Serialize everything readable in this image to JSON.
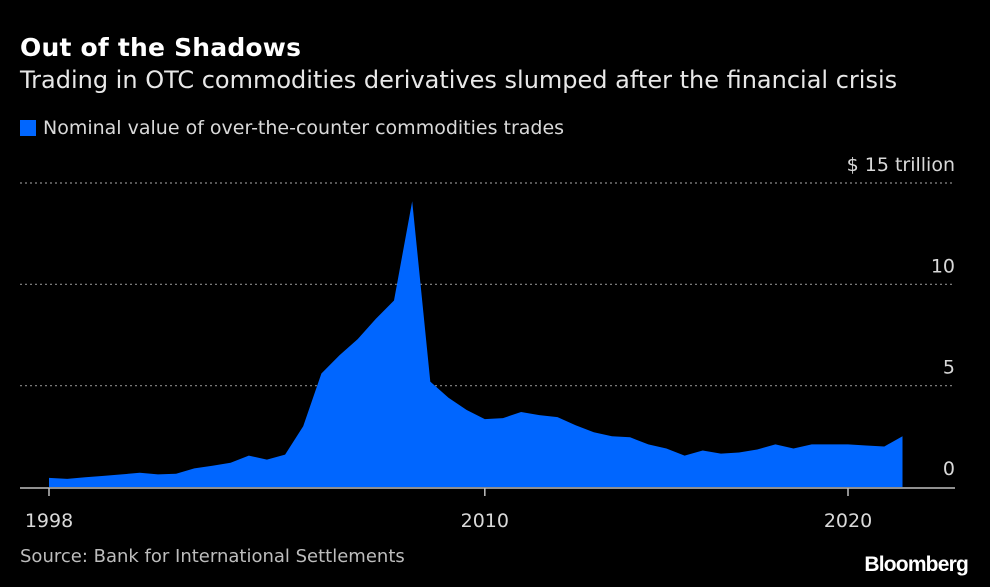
{
  "header": {
    "title": "Out of the Shadows",
    "subtitle": "Trading in OTC commodities derivatives slumped after the financial crisis"
  },
  "legend": {
    "label": "Nominal value of over-the-counter commodities trades"
  },
  "footer": {
    "source": "Source: Bank for International Settlements",
    "brand": "Bloomberg"
  },
  "colors": {
    "background": "#000000",
    "series": "#0066ff",
    "gridline": "#8a8a8a",
    "axis": "#bfbfbf",
    "tick_text": "#d9d9d9"
  },
  "chart_data": {
    "type": "area",
    "title": "Out of the Shadows",
    "subtitle": "Trading in OTC commodities derivatives slumped after the financial crisis",
    "xlabel": "",
    "ylabel": "",
    "xlim": [
      1998,
      2023.0
    ],
    "ylim": [
      0,
      15
    ],
    "y_unit_label": "$ 15 trillion",
    "y_ticks": [
      {
        "value": 15,
        "label": "$ 15 trillion"
      },
      {
        "value": 10,
        "label": "10"
      },
      {
        "value": 5,
        "label": "5"
      },
      {
        "value": 0,
        "label": "0"
      }
    ],
    "x_ticks": [
      {
        "value": 1998,
        "label": "1998"
      },
      {
        "value": 2010,
        "label": "2010"
      },
      {
        "value": 2020,
        "label": "2020"
      }
    ],
    "grid": true,
    "legend_position": "top-left",
    "series": [
      {
        "name": "Nominal value of over-the-counter commodities trades",
        "x": [
          1998.0,
          1998.5,
          1999.0,
          1999.5,
          2000.0,
          2000.5,
          2001.0,
          2001.5,
          2002.0,
          2002.5,
          2003.0,
          2003.5,
          2004.0,
          2004.5,
          2005.0,
          2005.5,
          2006.0,
          2006.5,
          2007.0,
          2007.5,
          2008.0,
          2008.5,
          2009.0,
          2009.5,
          2010.0,
          2010.5,
          2011.0,
          2011.5,
          2012.0,
          2012.5,
          2013.0,
          2013.5,
          2014.0,
          2014.5,
          2015.0,
          2015.5,
          2016.0,
          2016.5,
          2017.0,
          2017.5,
          2018.0,
          2018.5,
          2019.0,
          2019.5,
          2020.0,
          2020.5,
          2021.0,
          2021.5
        ],
        "values": [
          0.45,
          0.4,
          0.48,
          0.55,
          0.62,
          0.7,
          0.62,
          0.65,
          0.92,
          1.05,
          1.2,
          1.55,
          1.35,
          1.6,
          3.0,
          5.6,
          6.5,
          7.3,
          8.3,
          9.2,
          14.1,
          5.2,
          4.4,
          3.8,
          3.35,
          3.4,
          3.7,
          3.55,
          3.45,
          3.05,
          2.7,
          2.5,
          2.45,
          2.1,
          1.9,
          1.55,
          1.8,
          1.65,
          1.7,
          1.85,
          2.1,
          1.9,
          2.1,
          2.1,
          2.1,
          2.05,
          2.0,
          2.5
        ]
      }
    ]
  }
}
